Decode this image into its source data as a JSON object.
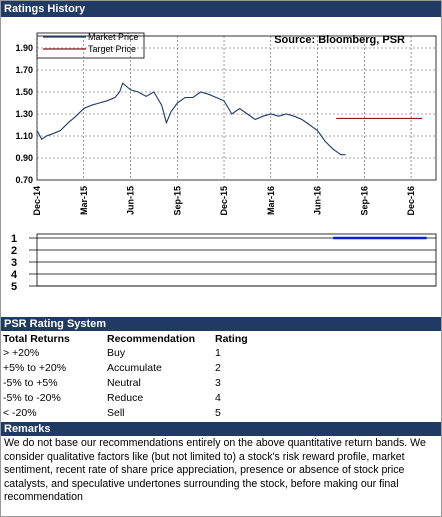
{
  "header": {
    "title": "Ratings History"
  },
  "chart_data": [
    {
      "type": "line",
      "source": "Source: Bloomberg, PSR",
      "grid": true,
      "xlim": [
        0,
        25.6
      ],
      "xticks": [
        {
          "value": 0,
          "label": "Dec-14"
        },
        {
          "value": 3,
          "label": "Mar-15"
        },
        {
          "value": 6,
          "label": "Jun-15"
        },
        {
          "value": 9,
          "label": "Sep-15"
        },
        {
          "value": 12,
          "label": "Dec-15"
        },
        {
          "value": 15,
          "label": "Mar-16"
        },
        {
          "value": 18,
          "label": "Jun-16"
        },
        {
          "value": 21,
          "label": "Sep-16"
        },
        {
          "value": 24,
          "label": "Dec-16"
        }
      ],
      "ylim": [
        0.7,
        1.9
      ],
      "yticks": [
        {
          "value": 0.7,
          "label": "0.70"
        },
        {
          "value": 0.9,
          "label": "0.90"
        },
        {
          "value": 1.1,
          "label": "1.10"
        },
        {
          "value": 1.3,
          "label": "1.30"
        },
        {
          "value": 1.5,
          "label": "1.50"
        },
        {
          "value": 1.7,
          "label": "1.70"
        },
        {
          "value": 1.9,
          "label": "1.90"
        }
      ],
      "series": [
        {
          "name": "Market Price",
          "color": "#1f3b6e",
          "x": [
            0,
            0.3,
            0.6,
            1,
            1.5,
            2,
            2.5,
            3,
            3.5,
            4,
            4.5,
            5,
            5.3,
            5.5,
            6,
            6.5,
            7,
            7.5,
            8,
            8.3,
            8.6,
            9,
            9.5,
            10,
            10.5,
            11,
            11.5,
            12,
            12.5,
            13,
            13.5,
            14,
            14.5,
            15,
            15.5,
            16,
            16.5,
            17,
            17.5,
            18,
            18.5,
            19,
            19.5,
            19.8
          ],
          "values": [
            1.15,
            1.07,
            1.1,
            1.12,
            1.15,
            1.22,
            1.28,
            1.35,
            1.38,
            1.4,
            1.42,
            1.45,
            1.5,
            1.58,
            1.52,
            1.5,
            1.46,
            1.5,
            1.38,
            1.22,
            1.32,
            1.4,
            1.45,
            1.45,
            1.5,
            1.48,
            1.45,
            1.42,
            1.3,
            1.35,
            1.3,
            1.25,
            1.28,
            1.3,
            1.28,
            1.3,
            1.28,
            1.25,
            1.2,
            1.15,
            1.05,
            0.98,
            0.93,
            0.93
          ]
        },
        {
          "name": "Target Price",
          "color": "#8b1a1a",
          "x": [
            19.2,
            24.7
          ],
          "values": [
            1.26,
            1.26
          ]
        }
      ]
    },
    {
      "type": "line",
      "grid": true,
      "y_inverted": true,
      "xlim": [
        0,
        25.6
      ],
      "ylim": [
        1,
        5
      ],
      "yticks": [
        1,
        2,
        3,
        4,
        5
      ],
      "series": [
        {
          "color": "#0a1fd6",
          "x": [
            19,
            25
          ],
          "values": [
            1,
            1
          ]
        }
      ]
    }
  ],
  "rating_system": {
    "title": "PSR Rating System",
    "columns": [
      "Total Returns",
      "Recommendation",
      "Rating"
    ],
    "rows": [
      [
        "> +20%",
        "Buy",
        1
      ],
      [
        "+5% to +20%",
        "Accumulate",
        2
      ],
      [
        "-5% to +5%",
        "Neutral",
        3
      ],
      [
        "-5% to -20%",
        "Reduce",
        4
      ],
      [
        "< -20%",
        "Sell",
        5
      ]
    ]
  },
  "remarks": {
    "title": "Remarks",
    "text": "We do not base our recommendations entirely on the  above quantitative return bands.  We consider qualitative factors like (but not limited to) a stock's risk reward profile, market sentiment, recent rate of share price appreciation, presence or absence of stock price catalysts, and speculative undertones surrounding the stock, before making our final recommendation"
  }
}
